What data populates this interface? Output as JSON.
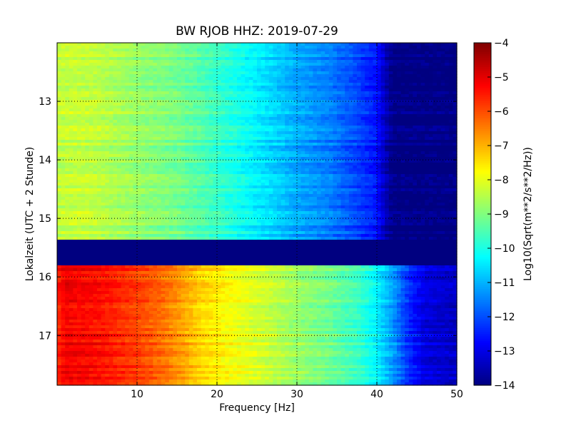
{
  "chart_data": {
    "type": "heatmap",
    "title": "BW RJOB HHZ: 2019-07-29",
    "xlabel": "Frequency [Hz]",
    "ylabel": "Lokalzeit (UTC + 2 Stunde)",
    "colorbar_label": "Log10(Sqrt(m**2/s**2/Hz))",
    "colormap": "jet",
    "xlim": [
      0,
      50
    ],
    "ylim": [
      12.0,
      17.85
    ],
    "y_inverted": true,
    "x_ticks": [
      10,
      20,
      30,
      40,
      50
    ],
    "x_tick_labels": [
      "10",
      "20",
      "30",
      "40",
      "50"
    ],
    "y_ticks": [
      13,
      14,
      15,
      16,
      17
    ],
    "y_tick_labels": [
      "13",
      "14",
      "15",
      "16",
      "17"
    ],
    "clim": [
      -14,
      -4
    ],
    "colorbar_ticks": [
      -14,
      -13,
      -12,
      -11,
      -10,
      -9,
      -8,
      -7,
      -6,
      -5,
      -4
    ],
    "colorbar_tick_labels": [
      "−14",
      "−13",
      "−12",
      "−11",
      "−10",
      "−9",
      "−8",
      "−7",
      "−6",
      "−5",
      "−4"
    ],
    "grid": true,
    "gap": {
      "start_hour": 15.38,
      "end_hour": 15.8,
      "value": -14
    },
    "profiles": [
      {
        "time_range": [
          12.0,
          15.38
        ],
        "frequency_hz": [
          0,
          2,
          5,
          10,
          15,
          20,
          25,
          28,
          30,
          34,
          37,
          40,
          41,
          42,
          50
        ],
        "log10_amplitude": [
          -8.4,
          -8.3,
          -8.4,
          -8.8,
          -9.1,
          -9.7,
          -10.4,
          -10.8,
          -11.1,
          -11.5,
          -12.0,
          -12.6,
          -13.4,
          -14.0,
          -14.0
        ]
      },
      {
        "time_range": [
          15.8,
          17.85
        ],
        "frequency_hz": [
          0,
          1,
          5,
          10,
          14,
          18,
          22,
          26,
          30,
          34,
          38,
          40,
          42,
          44,
          46,
          50
        ],
        "log10_amplitude": [
          -5.6,
          -5.1,
          -5.3,
          -5.8,
          -6.4,
          -7.3,
          -7.8,
          -8.2,
          -8.7,
          -9.1,
          -9.7,
          -10.3,
          -11.2,
          -12.3,
          -13.0,
          -13.3
        ]
      }
    ]
  }
}
